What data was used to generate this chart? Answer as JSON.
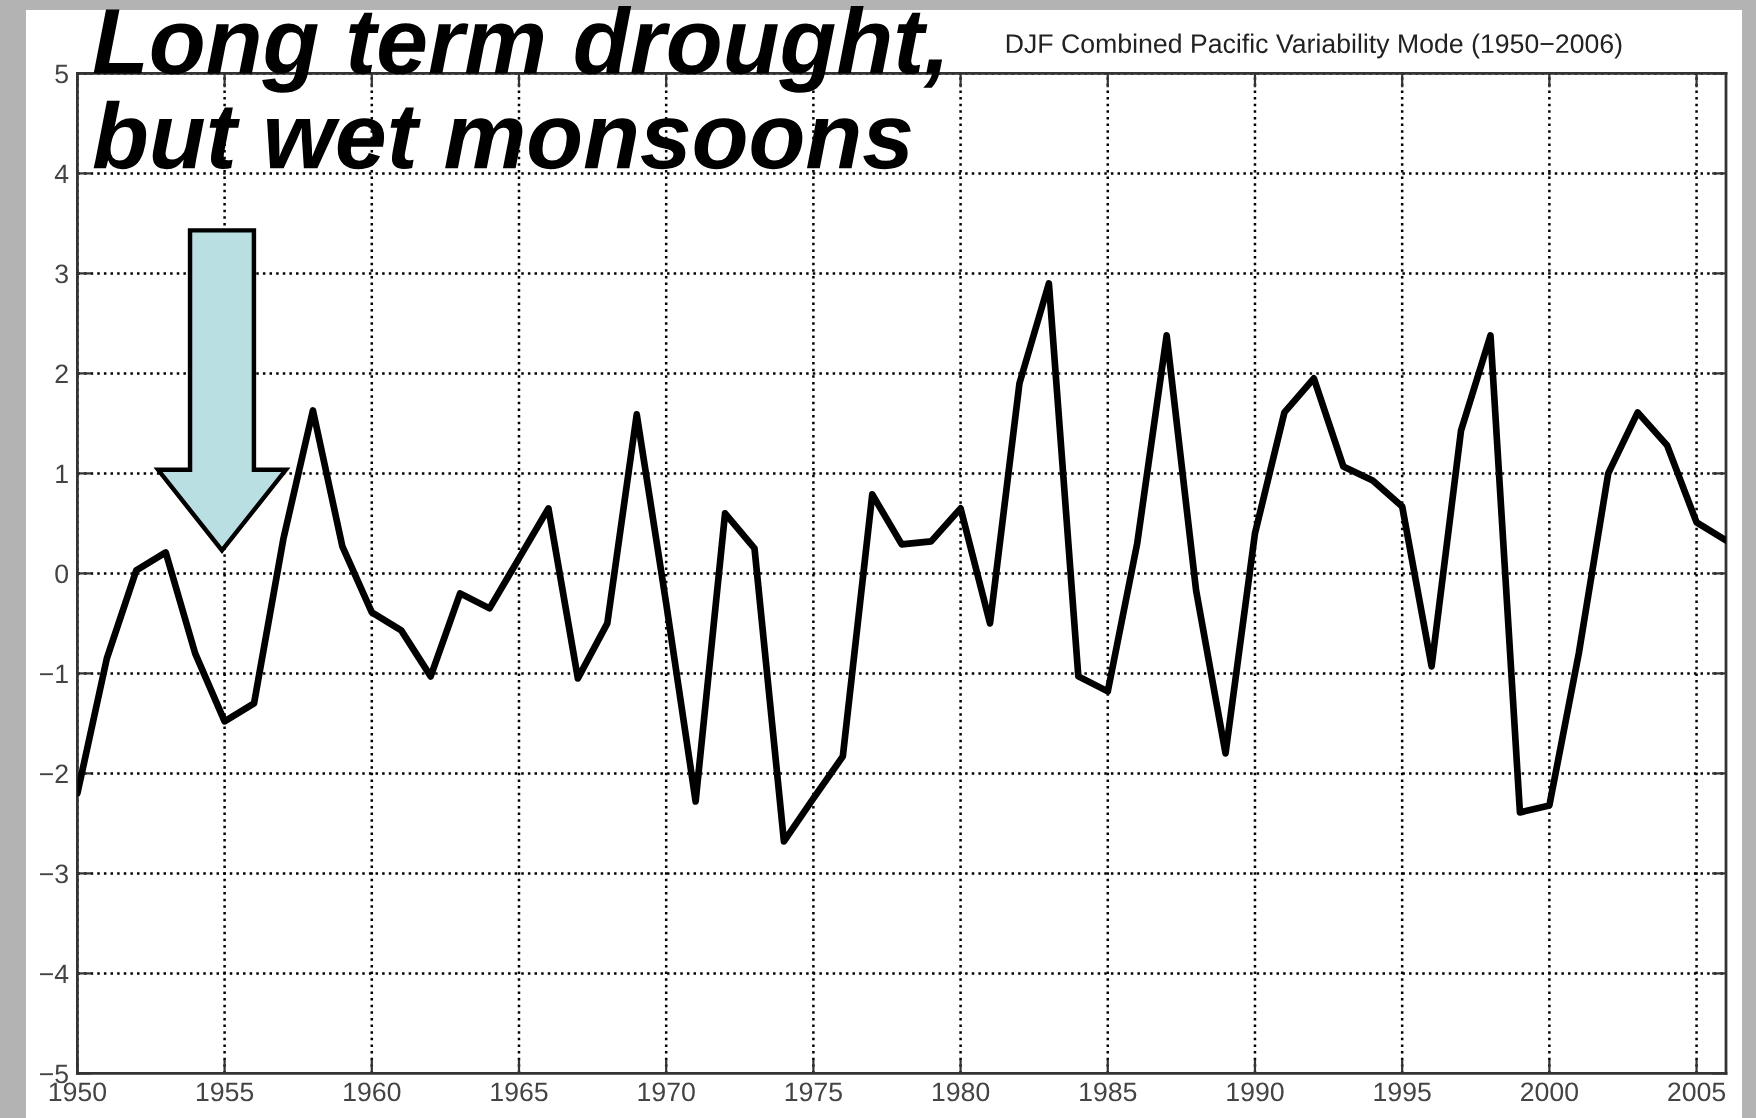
{
  "chart_data": {
    "type": "line",
    "title": "DJF Combined Pacific Variability Mode (1950−2006)",
    "annotations": [
      "Long term drought,\nbut wet monsoons"
    ],
    "x": [
      1950,
      1951,
      1952,
      1953,
      1954,
      1955,
      1956,
      1957,
      1958,
      1959,
      1960,
      1961,
      1962,
      1963,
      1964,
      1965,
      1966,
      1967,
      1968,
      1969,
      1970,
      1971,
      1972,
      1973,
      1974,
      1975,
      1976,
      1977,
      1978,
      1979,
      1980,
      1981,
      1982,
      1983,
      1984,
      1985,
      1986,
      1987,
      1988,
      1989,
      1990,
      1991,
      1992,
      1993,
      1994,
      1995,
      1996,
      1997,
      1998,
      1999,
      2000,
      2001,
      2002,
      2003,
      2004,
      2005,
      2006
    ],
    "series": [
      {
        "color": "#000000",
        "values": [
          -2.2,
          -0.85,
          0.03,
          0.21,
          -0.8,
          -1.48,
          -1.3,
          0.35,
          1.63,
          0.27,
          -0.39,
          -0.57,
          -1.03,
          -0.2,
          -0.35,
          0.15,
          0.65,
          -1.05,
          -0.5,
          1.59,
          -0.3,
          -2.28,
          0.6,
          0.25,
          -2.68,
          -2.25,
          -1.83,
          0.79,
          0.29,
          0.32,
          0.65,
          -0.5,
          1.9,
          2.9,
          -1.03,
          -1.18,
          0.3,
          2.38,
          -0.17,
          -1.8,
          0.4,
          1.61,
          1.95,
          1.07,
          0.93,
          0.67,
          -0.93,
          1.43,
          2.38,
          -2.39,
          -2.32,
          -0.8,
          1.0,
          1.61,
          1.28,
          0.51,
          0.33
        ]
      }
    ],
    "xlim": [
      1950,
      2006
    ],
    "xticks": [
      1950,
      1955,
      1960,
      1965,
      1970,
      1975,
      1980,
      1985,
      1990,
      1995,
      2000,
      2005
    ],
    "ylim": [
      -5,
      5
    ],
    "yticks": [
      {
        "value": -5,
        "label": "−5"
      },
      {
        "value": -4,
        "label": "−4"
      },
      {
        "value": -3,
        "label": "−3"
      },
      {
        "value": -2,
        "label": "−2"
      },
      {
        "value": -1,
        "label": "−1"
      },
      0,
      1,
      2,
      3,
      4,
      5
    ],
    "grid": true,
    "line_style": "solid"
  }
}
